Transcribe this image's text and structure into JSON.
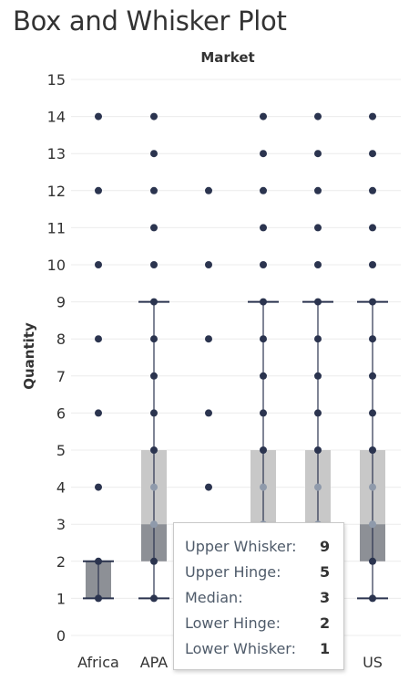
{
  "title": "Box and Whisker Plot",
  "colors": {
    "dot": "#2b344f",
    "box_upper": "#c8c8c8",
    "box_lower": "#8d9096",
    "median_dot": "#8f9aab",
    "grid": "#ececec",
    "text": "#333333"
  },
  "chart_data": {
    "type": "box",
    "column_header": "Market",
    "ylabel": "Quantity",
    "ylim": [
      0,
      15
    ],
    "yticks": [
      0,
      1,
      2,
      3,
      4,
      5,
      6,
      7,
      8,
      9,
      10,
      11,
      12,
      13,
      14,
      15
    ],
    "grid": "horizontal",
    "categories": [
      "Africa",
      "APA",
      "",
      "",
      "",
      "US"
    ],
    "points": [
      [
        1,
        2,
        4,
        6,
        8,
        10,
        12,
        14
      ],
      [
        1,
        2,
        3,
        4,
        5,
        6,
        7,
        8,
        9,
        10,
        11,
        12,
        13,
        14
      ],
      [
        4,
        6,
        8,
        10,
        12
      ],
      [
        1,
        2,
        3,
        4,
        5,
        6,
        7,
        8,
        9,
        10,
        11,
        12,
        13,
        14
      ],
      [
        1,
        2,
        3,
        4,
        5,
        6,
        7,
        8,
        9,
        10,
        11,
        12,
        13,
        14
      ],
      [
        1,
        2,
        3,
        4,
        5,
        6,
        7,
        8,
        9,
        10,
        11,
        12,
        13,
        14
      ]
    ],
    "boxes": [
      {
        "lower_whisker": 1,
        "lower_hinge": 1,
        "median": 2,
        "upper_hinge": 2,
        "upper_whisker": 2
      },
      {
        "lower_whisker": 1,
        "lower_hinge": 2,
        "median": 3,
        "upper_hinge": 5,
        "upper_whisker": 9
      },
      null,
      {
        "lower_whisker": 1,
        "lower_hinge": 2,
        "median": 3,
        "upper_hinge": 5,
        "upper_whisker": 9
      },
      {
        "lower_whisker": 1,
        "lower_hinge": 2,
        "median": 3,
        "upper_hinge": 5,
        "upper_whisker": 9
      },
      {
        "lower_whisker": 1,
        "lower_hinge": 2,
        "median": 3,
        "upper_hinge": 5,
        "upper_whisker": 9
      }
    ]
  },
  "tooltip": {
    "rows": [
      {
        "label": "Upper Whisker:",
        "value": "9"
      },
      {
        "label": "Upper Hinge:",
        "value": "5"
      },
      {
        "label": "Median:",
        "value": "3"
      },
      {
        "label": "Lower Hinge:",
        "value": "2"
      },
      {
        "label": "Lower Whisker:",
        "value": "1"
      }
    ]
  }
}
